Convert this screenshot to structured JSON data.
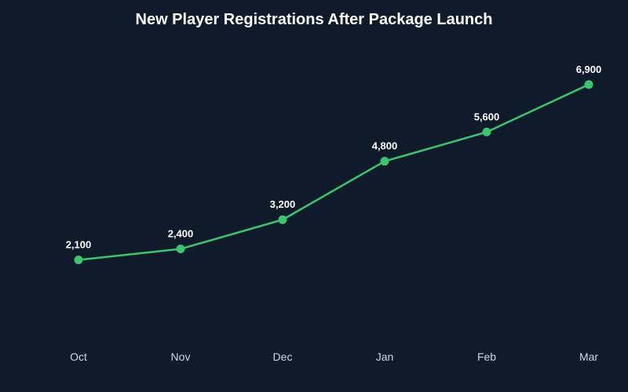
{
  "chart_data": {
    "type": "line",
    "title": "New Player Registrations After Package Launch",
    "categories": [
      "Oct",
      "Nov",
      "Dec",
      "Jan",
      "Feb",
      "Mar"
    ],
    "series": [
      {
        "values": [
          2100,
          2400,
          3200,
          4800,
          5600,
          6900
        ],
        "labels": [
          "2,100",
          "2,400",
          "3,200",
          "4,800",
          "5,600",
          "6,900"
        ],
        "color": "#3dc46f"
      }
    ],
    "grid": false,
    "legend": "none"
  }
}
